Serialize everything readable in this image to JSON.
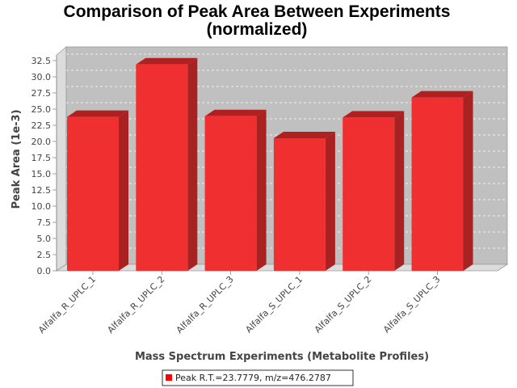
{
  "chart_data": {
    "type": "bar",
    "title": "Comparison of Peak Area Between Experiments",
    "subtitle": "(normalized)",
    "xlabel": "Mass Spectrum Experiments (Metabolite Profiles)",
    "ylabel": "Peak Area (1e-3)",
    "categories": [
      "Alfalfa_R_UPLC_1",
      "Alfalfa_R_UPLC_2",
      "Alfalfa_R_UPLC_3",
      "Alfalfa_S_UPLC_1",
      "Alfalfa_S_UPLC_2",
      "Alfalfa_S_UPLC_3"
    ],
    "series": [
      {
        "name": "Peak R.T.=23.7779, m/z=476.2787",
        "values": [
          23.8,
          31.9,
          23.9,
          20.5,
          23.7,
          26.8
        ]
      }
    ],
    "ylim": [
      0,
      33.5
    ],
    "yticks": [
      "0.0",
      "2.5",
      "5.0",
      "7.5",
      "10.0",
      "12.5",
      "15.0",
      "17.5",
      "20.0",
      "22.5",
      "25.0",
      "27.5",
      "30.0",
      "32.5"
    ],
    "grid": true,
    "legend_position": "bottom-center",
    "colors": {
      "bar_front": "#f03030",
      "bar_top": "#b02020",
      "bar_side": "#a82222",
      "plot_background": "#c0c0c0",
      "wall_side": "#dcdcdc",
      "floor": "#dcdcdc",
      "gridline": "#ffffff",
      "legend_swatch": "#ff0000"
    }
  }
}
